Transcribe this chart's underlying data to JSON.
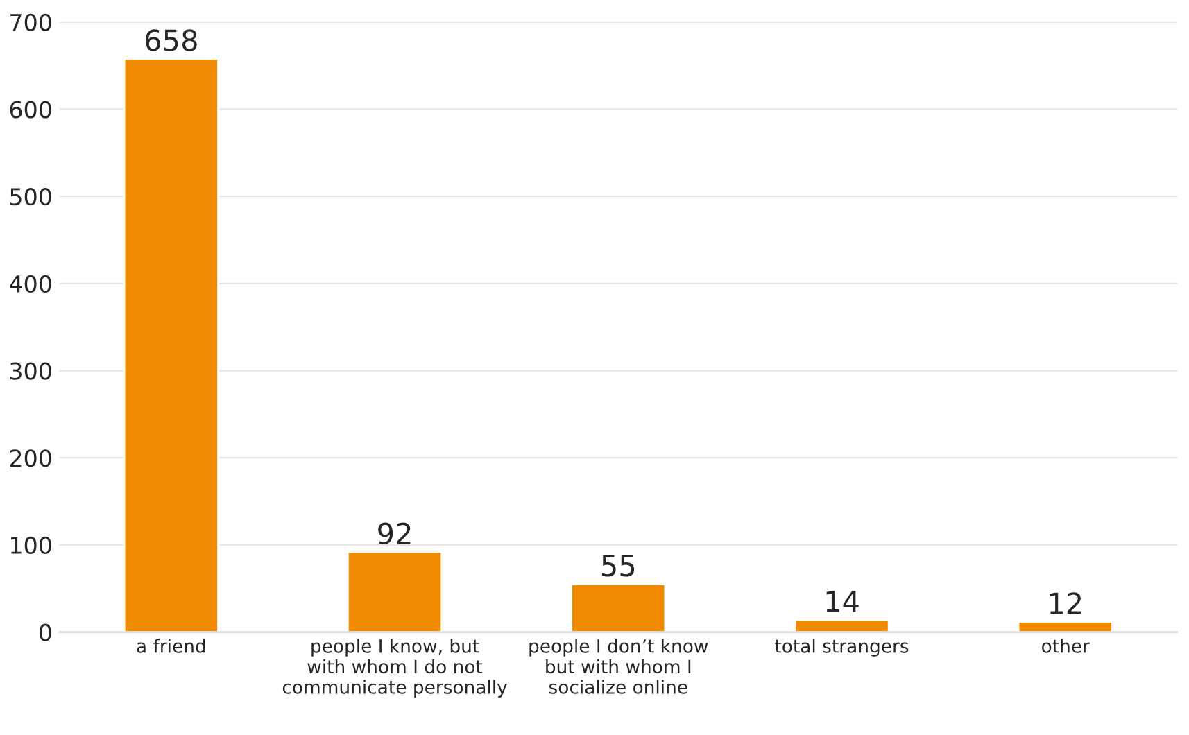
{
  "chart_data": {
    "type": "bar",
    "categories": [
      "a friend",
      "people I know, but\nwith whom I do not\ncommunicate personally",
      "people I don’t know\nbut with whom I\nsocialize online",
      "total strangers",
      "other"
    ],
    "values": [
      658,
      92,
      55,
      14,
      12
    ],
    "color": "#f08a00",
    "ylim": [
      0,
      700
    ],
    "yticks": [
      0,
      100,
      200,
      300,
      400,
      500,
      600,
      700
    ],
    "grid": "y",
    "data_labels": true
  }
}
